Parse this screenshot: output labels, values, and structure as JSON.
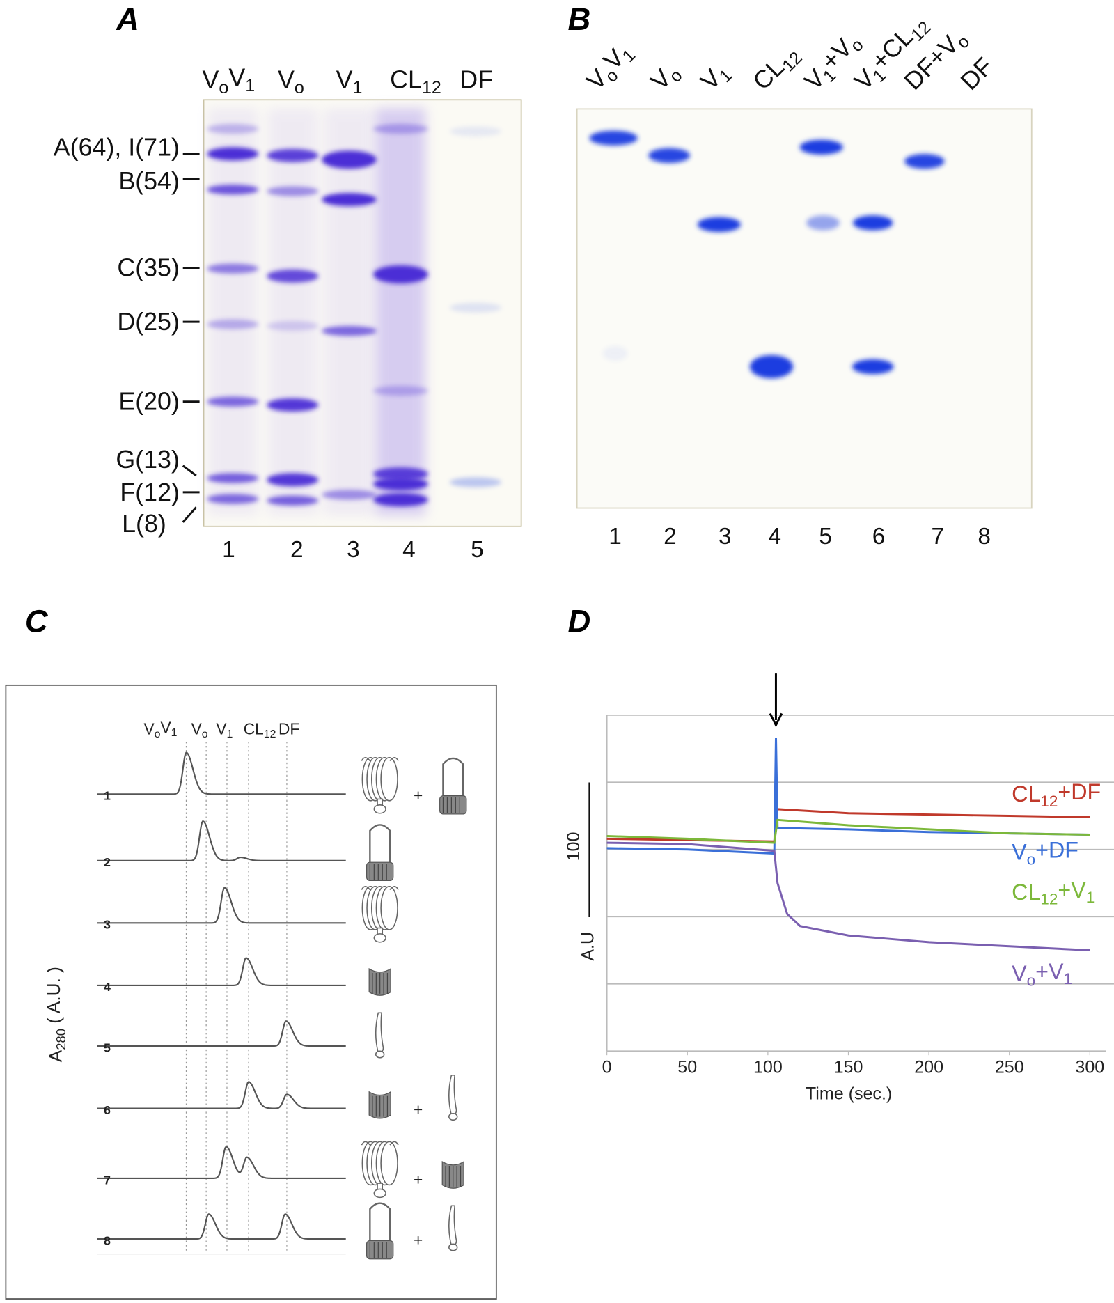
{
  "panels": {
    "a": "A",
    "b": "B",
    "c": "C",
    "d": "D"
  },
  "gel_a": {
    "lane_headers": [
      "V_{o}V_{1}",
      "V_{o}",
      "V_{1}",
      "CL_{12}",
      "DF"
    ],
    "lane_numbers": [
      "1",
      "2",
      "3",
      "4",
      "5"
    ],
    "markers": [
      "A(64), I(71)",
      "B(54)",
      "C(35)",
      "D(25)",
      "E(20)",
      "G(13)",
      "F(12)",
      "L(8)"
    ],
    "band_color": "#4b2fd6",
    "background_color": "#fbfaf4"
  },
  "gel_b": {
    "lane_headers": [
      "V_{o}V_{1}",
      "V_{o}",
      "V_{1}",
      "CL_{12}",
      "V_{1}+V_{o}",
      "V_{1}+CL_{12}",
      "DF+V_{o}",
      "DF"
    ],
    "lane_numbers": [
      "1",
      "2",
      "3",
      "4",
      "5",
      "6",
      "7",
      "8"
    ],
    "band_color": "#1f3ee0"
  },
  "chart_c": {
    "type": "line",
    "ylabel": "A_{280} ( A.U. )",
    "peak_labels": [
      "V_{o}V_{1}",
      "V_{o}",
      "V_{1}",
      "CL_{12}",
      "DF"
    ],
    "traces": [
      {
        "label": "1",
        "peaks": [
          {
            "at": "V_{o}V_{1}",
            "height": 1.0
          }
        ],
        "components": [
          "V1",
          "Vo"
        ]
      },
      {
        "label": "2",
        "peaks": [
          {
            "at": "V_{o}",
            "height": 0.95
          },
          {
            "at": "V_{1}+",
            "height": 0.08
          }
        ],
        "components": [
          "Vo"
        ]
      },
      {
        "label": "3",
        "peaks": [
          {
            "at": "V_{1}",
            "height": 0.85
          }
        ],
        "components": [
          "V1"
        ]
      },
      {
        "label": "4",
        "peaks": [
          {
            "at": "CL_{12}",
            "height": 0.66
          }
        ],
        "components": [
          "CL12"
        ]
      },
      {
        "label": "5",
        "peaks": [
          {
            "at": "DF",
            "height": 0.6
          }
        ],
        "components": [
          "DF"
        ]
      },
      {
        "label": "6",
        "peaks": [
          {
            "at": "CL_{12}",
            "height": 0.64
          },
          {
            "at": "DF",
            "height": 0.34
          }
        ],
        "components": [
          "CL12",
          "DF"
        ]
      },
      {
        "label": "7",
        "peaks": [
          {
            "at": "V_{1}",
            "height": 0.76
          },
          {
            "at": "CL_{12}",
            "height": 0.5
          }
        ],
        "components": [
          "V1",
          "CL12"
        ]
      },
      {
        "label": "8",
        "peaks": [
          {
            "at": "V_{o}",
            "height": 0.6
          },
          {
            "at": "DF",
            "height": 0.6
          }
        ],
        "components": [
          "Vo",
          "DF"
        ]
      }
    ],
    "plus": "+"
  },
  "chart_d": {
    "type": "line",
    "xlabel": "Time (sec.)",
    "ylabel": "A.U",
    "scale_bar_label": "100",
    "xlim": [
      0,
      300
    ],
    "ylim": [
      0,
      250
    ],
    "xticks": [
      "0",
      "50",
      "100",
      "150",
      "200",
      "250",
      "300"
    ],
    "grid": true,
    "arrow_at": 105,
    "series": [
      {
        "name": "CL_{12}+DF",
        "color": "#c0392b",
        "points": [
          [
            0,
            158
          ],
          [
            50,
            157
          ],
          [
            104,
            156
          ],
          [
            106,
            180
          ],
          [
            150,
            177
          ],
          [
            200,
            176
          ],
          [
            250,
            175
          ],
          [
            300,
            174
          ]
        ]
      },
      {
        "name": "V_{o}+DF",
        "color": "#3a6fd8",
        "points": [
          [
            0,
            151
          ],
          [
            50,
            150
          ],
          [
            104,
            147
          ],
          [
            105,
            233
          ],
          [
            106,
            166
          ],
          [
            150,
            165
          ],
          [
            200,
            163
          ],
          [
            250,
            162
          ],
          [
            300,
            161
          ]
        ]
      },
      {
        "name": "CL_{12}+V_{1}",
        "color": "#7cb83a",
        "points": [
          [
            0,
            160
          ],
          [
            50,
            158
          ],
          [
            104,
            155
          ],
          [
            106,
            172
          ],
          [
            150,
            168
          ],
          [
            200,
            165
          ],
          [
            250,
            162
          ],
          [
            300,
            161
          ]
        ]
      },
      {
        "name": "V_{o}+V_{1}",
        "color": "#7a5fb0",
        "points": [
          [
            0,
            155
          ],
          [
            50,
            154
          ],
          [
            104,
            149
          ],
          [
            106,
            125
          ],
          [
            112,
            102
          ],
          [
            120,
            93
          ],
          [
            150,
            86
          ],
          [
            200,
            81
          ],
          [
            250,
            78
          ],
          [
            300,
            75
          ]
        ]
      }
    ]
  }
}
